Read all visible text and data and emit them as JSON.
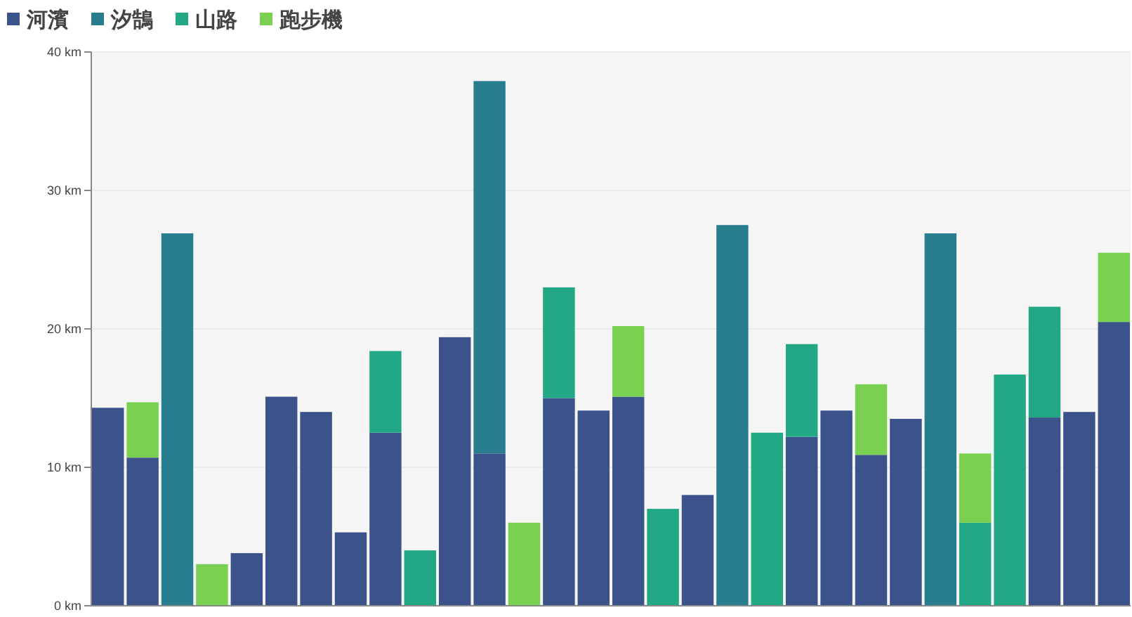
{
  "chart_data": {
    "type": "bar",
    "stacked": true,
    "categories": [
      null,
      null,
      null,
      null,
      null,
      null,
      null,
      null,
      null,
      null,
      null,
      null,
      null,
      null,
      null,
      null,
      null,
      null,
      null,
      null,
      null,
      null,
      null,
      null,
      null,
      null,
      null,
      null,
      null,
      null
    ],
    "series": [
      {
        "name": "河濱",
        "color": "#3b528b",
        "values": [
          14.3,
          10.7,
          null,
          null,
          3.8,
          15.1,
          14.0,
          5.3,
          12.5,
          null,
          19.4,
          11.0,
          null,
          15.0,
          14.1,
          15.1,
          null,
          8.0,
          null,
          null,
          12.2,
          14.1,
          10.9,
          13.5,
          null,
          null,
          null,
          13.6,
          14.0,
          20.5
        ]
      },
      {
        "name": "汐鵠",
        "color": "#287d8e",
        "values": [
          null,
          null,
          26.9,
          null,
          null,
          null,
          null,
          null,
          null,
          null,
          null,
          26.9,
          null,
          null,
          null,
          null,
          null,
          null,
          27.5,
          null,
          null,
          null,
          null,
          null,
          26.9,
          null,
          null,
          null,
          null,
          null
        ]
      },
      {
        "name": "山路",
        "color": "#22a884",
        "values": [
          null,
          null,
          null,
          null,
          null,
          null,
          null,
          null,
          5.9,
          4.0,
          null,
          null,
          null,
          8.0,
          null,
          null,
          7.0,
          null,
          null,
          12.5,
          6.7,
          null,
          null,
          null,
          null,
          6.0,
          16.7,
          8.0,
          null,
          null
        ]
      },
      {
        "name": "跑步機",
        "color": "#7ad151",
        "values": [
          null,
          4.0,
          null,
          3.0,
          null,
          null,
          null,
          null,
          null,
          null,
          null,
          null,
          6.0,
          null,
          null,
          5.1,
          null,
          null,
          null,
          null,
          null,
          null,
          5.1,
          null,
          null,
          5.0,
          null,
          null,
          null,
          5.0
        ]
      }
    ],
    "ylim": [
      0,
      40
    ],
    "yticks": [
      {
        "value": 0,
        "label": "0 km"
      },
      {
        "value": 10,
        "label": "10 km"
      },
      {
        "value": 20,
        "label": "20 km"
      },
      {
        "value": 30,
        "label": "30 km"
      },
      {
        "value": 40,
        "label": "40 km"
      }
    ],
    "grid": "y",
    "legend": "top left",
    "tick_labels": "y"
  }
}
